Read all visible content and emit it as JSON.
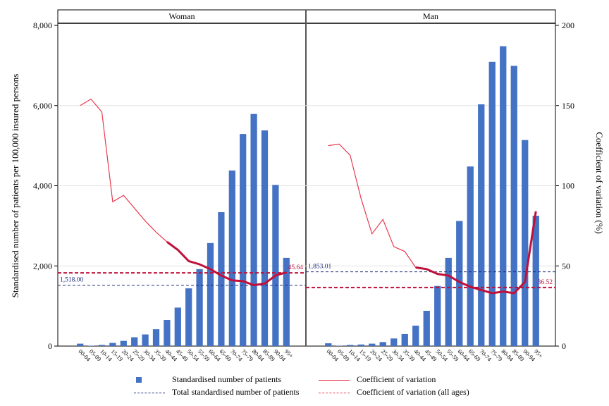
{
  "chart_data": {
    "type": "bar",
    "ylabel_left": "Standardised number of patients per 100,000 insured persons",
    "ylabel_right": "Coefficient of variation (%)",
    "ylim_left": [
      0,
      8000
    ],
    "ylim_right": [
      0,
      200
    ],
    "yticks_left": [
      "0",
      "2,000",
      "4,000",
      "6,000",
      "8,000"
    ],
    "yticks_right": [
      "0",
      "50",
      "100",
      "150",
      "200"
    ],
    "categories": [
      "00-04",
      "05-09",
      "10-14",
      "15-19",
      "20-24",
      "25-29",
      "30-34",
      "35-39",
      "40-44",
      "45-49",
      "50-54",
      "55-59",
      "60-64",
      "65-69",
      "70-74",
      "75-79",
      "80-84",
      "85-89",
      "90-94",
      "95+"
    ],
    "grid": true,
    "legend_position": "bottom",
    "colors": {
      "bar": "#4472c4",
      "cv_line": "#e8394f",
      "total_line": "#1f2d7a",
      "cv_all_line": "#e8394f",
      "cv_bold": "#c0103a"
    },
    "panels": [
      {
        "title": "Woman",
        "bars": [
          60,
          10,
          30,
          80,
          130,
          220,
          290,
          420,
          650,
          960,
          1440,
          1920,
          2570,
          3340,
          4380,
          5290,
          5790,
          5380,
          4020,
          2200
        ],
        "cv": [
          150,
          154,
          146,
          90,
          94,
          86,
          78,
          71,
          65,
          60,
          53,
          51,
          48,
          44,
          41,
          40.5,
          38,
          39,
          44,
          46
        ],
        "cv_bold_from_index": 8,
        "total": 1518.0,
        "total_label": "1,518.00",
        "cv_all": 45.64,
        "cv_all_label": "45.64"
      },
      {
        "title": "Man",
        "bars": [
          70,
          10,
          30,
          40,
          60,
          100,
          190,
          300,
          510,
          880,
          1500,
          2200,
          3120,
          4480,
          6030,
          7090,
          7480,
          6990,
          5140,
          3250
        ],
        "cv": [
          125,
          126,
          119,
          92,
          70,
          79,
          62,
          59,
          49,
          48,
          45,
          44,
          40,
          37,
          35,
          33,
          34,
          33,
          40,
          84
        ],
        "cv_bold_from_index": 8,
        "total": 1853.01,
        "total_label": "1,853.01",
        "cv_all": 36.52,
        "cv_all_label": "36.52"
      }
    ]
  },
  "legend": {
    "bars": "Standardised number of patients",
    "cv": "Coefficient of variation",
    "total": "Total standardised number of patients",
    "cv_all": "Coefficient of variation (all ages)"
  }
}
